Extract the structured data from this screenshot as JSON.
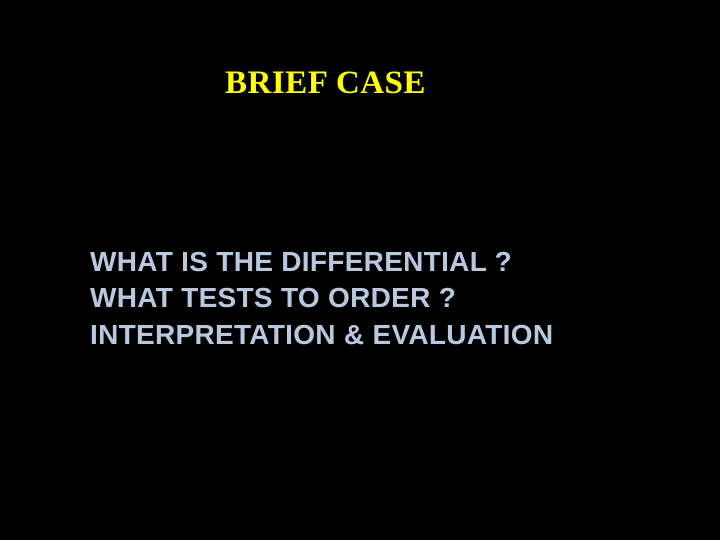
{
  "slide": {
    "title": "BRIEF CASE",
    "lines": [
      "WHAT IS THE DIFFERENTIAL ?",
      "WHAT TESTS TO ORDER ?",
      "INTERPRETATION & EVALUATION"
    ],
    "colors": {
      "background": "#000000",
      "title_color": "#ffff00",
      "body_color": "#b9c8de"
    },
    "typography": {
      "title_fontsize": 33,
      "title_family": "Georgia, serif",
      "body_fontsize": 28,
      "body_family": "Arial, sans-serif",
      "body_weight": "bold"
    }
  }
}
